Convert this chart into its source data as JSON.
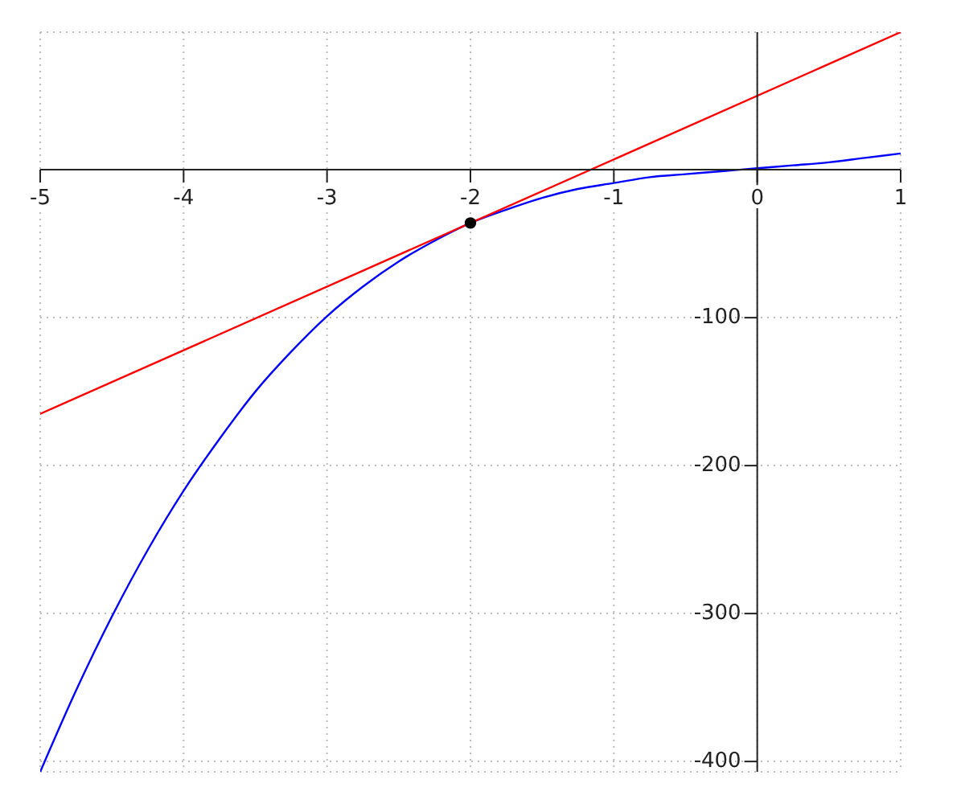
{
  "chart_data": {
    "type": "line",
    "xlim": [
      -5,
      1
    ],
    "ylim": [
      -407,
      93
    ],
    "xticks": [
      -5,
      -4,
      -3,
      -2,
      -1,
      0,
      1
    ],
    "yticks": [
      -400,
      -300,
      -200,
      -100
    ],
    "grid": true,
    "marker": "none",
    "line_style": "solid",
    "series": [
      {
        "color": "#0000ff",
        "x": [
          -5,
          -4.75,
          -4.5,
          -4.25,
          -4,
          -3.75,
          -3.5,
          -3.25,
          -3,
          -2.75,
          -2.5,
          -2.25,
          -2,
          -1.75,
          -1.5,
          -1.25,
          -1,
          -0.75,
          -0.5,
          -0.25,
          0,
          0.25,
          0.5,
          0.75,
          1
        ],
        "values": [
          -407,
          -352,
          -302,
          -257,
          -217,
          -182,
          -150,
          -123,
          -99,
          -79,
          -62,
          -48,
          -36,
          -27,
          -19,
          -13,
          -9,
          -5,
          -3,
          -1,
          1,
          3,
          5,
          8,
          11
        ]
      },
      {
        "color": "#ff0000",
        "x": [
          -5,
          1
        ],
        "values": [
          -165,
          93
        ]
      },
      {
        "type": "scatter",
        "color": "#000000",
        "marker": "circle",
        "x": [
          -2
        ],
        "values": [
          -36
        ]
      }
    ]
  }
}
